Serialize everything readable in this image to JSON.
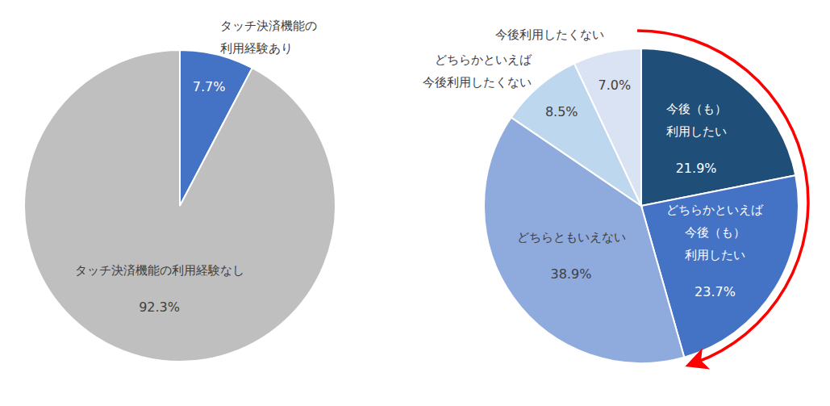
{
  "chart_data": [
    {
      "type": "pie",
      "categories": [
        "タッチ決済機能の\n利用経験あり",
        "タッチ決済機能の利用経験なし"
      ],
      "values": [
        7.7,
        92.3
      ],
      "value_labels": [
        "7.7%",
        "92.3%"
      ],
      "colors": [
        "#4472c4",
        "#bfbfbf"
      ],
      "data_labels": true
    },
    {
      "type": "pie",
      "categories": [
        "今後（も）\n利用したい",
        "どちらかといえば\n今後（も）\n利用したい",
        "どちらともいえない",
        "どちらかといえば\n今後利用したくない",
        "今後利用したくない"
      ],
      "values": [
        21.9,
        23.7,
        38.9,
        8.5,
        7.0
      ],
      "value_labels": [
        "21.9%",
        "23.7%",
        "38.9%",
        "8.5%",
        "7.0%"
      ],
      "colors": [
        "#1f4e79",
        "#4472c4",
        "#8faadc",
        "#bdd7ee",
        "#dae3f3"
      ],
      "data_labels": true
    }
  ]
}
